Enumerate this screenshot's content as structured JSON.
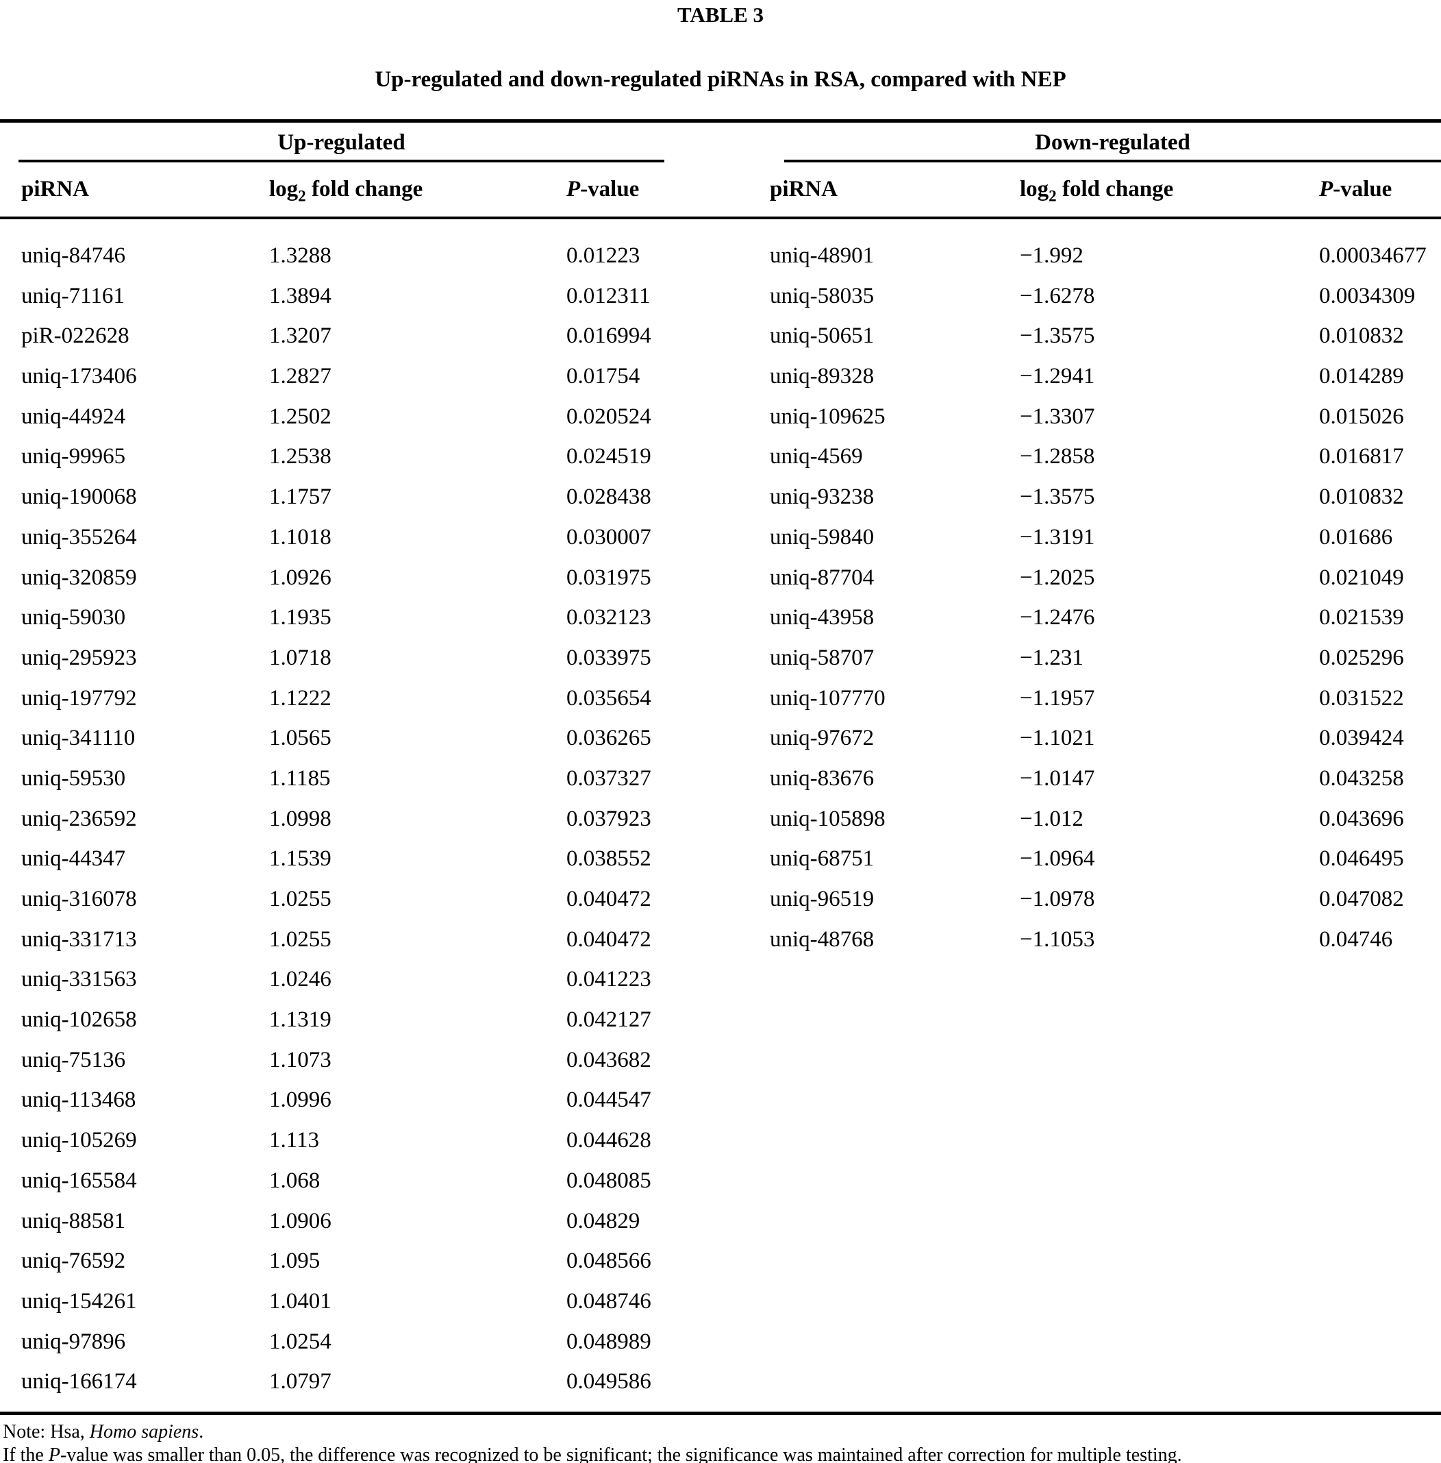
{
  "table": {
    "title": "TABLE 3",
    "subtitle": "Up-regulated and down-regulated piRNAs in RSA, compared with NEP",
    "column_headers": {
      "pirna": "piRNA",
      "log2_pre": "log",
      "log2_sub": "2",
      "log2_post": " fold change",
      "pvalue_italic": "P",
      "pvalue_rest": "-value"
    },
    "panels": [
      {
        "group_label": "Up-regulated",
        "rows": [
          [
            "uniq-84746",
            "1.3288",
            "0.01223"
          ],
          [
            "uniq-71161",
            "1.3894",
            "0.012311"
          ],
          [
            "piR-022628",
            "1.3207",
            "0.016994"
          ],
          [
            "uniq-173406",
            "1.2827",
            "0.01754"
          ],
          [
            "uniq-44924",
            "1.2502",
            "0.020524"
          ],
          [
            "uniq-99965",
            "1.2538",
            "0.024519"
          ],
          [
            "uniq-190068",
            "1.1757",
            "0.028438"
          ],
          [
            "uniq-355264",
            "1.1018",
            "0.030007"
          ],
          [
            "uniq-320859",
            "1.0926",
            "0.031975"
          ],
          [
            "uniq-59030",
            "1.1935",
            "0.032123"
          ],
          [
            "uniq-295923",
            "1.0718",
            "0.033975"
          ],
          [
            "uniq-197792",
            "1.1222",
            "0.035654"
          ],
          [
            "uniq-341110",
            "1.0565",
            "0.036265"
          ],
          [
            "uniq-59530",
            "1.1185",
            "0.037327"
          ],
          [
            "uniq-236592",
            "1.0998",
            "0.037923"
          ],
          [
            "uniq-44347",
            "1.1539",
            "0.038552"
          ],
          [
            "uniq-316078",
            "1.0255",
            "0.040472"
          ],
          [
            "uniq-331713",
            "1.0255",
            "0.040472"
          ],
          [
            "uniq-331563",
            "1.0246",
            "0.041223"
          ],
          [
            "uniq-102658",
            "1.1319",
            "0.042127"
          ],
          [
            "uniq-75136",
            "1.1073",
            "0.043682"
          ],
          [
            "uniq-113468",
            "1.0996",
            "0.044547"
          ],
          [
            "uniq-105269",
            "1.113",
            "0.044628"
          ],
          [
            "uniq-165584",
            "1.068",
            "0.048085"
          ],
          [
            "uniq-88581",
            "1.0906",
            "0.04829"
          ],
          [
            "uniq-76592",
            "1.095",
            "0.048566"
          ],
          [
            "uniq-154261",
            "1.0401",
            "0.048746"
          ],
          [
            "uniq-97896",
            "1.0254",
            "0.048989"
          ],
          [
            "uniq-166174",
            "1.0797",
            "0.049586"
          ]
        ]
      },
      {
        "group_label": "Down-regulated",
        "rows": [
          [
            "uniq-48901",
            "−1.992",
            "0.00034677"
          ],
          [
            "uniq-58035",
            "−1.6278",
            "0.0034309"
          ],
          [
            "uniq-50651",
            "−1.3575",
            "0.010832"
          ],
          [
            "uniq-89328",
            "−1.2941",
            "0.014289"
          ],
          [
            "uniq-109625",
            "−1.3307",
            "0.015026"
          ],
          [
            "uniq-4569",
            "−1.2858",
            "0.016817"
          ],
          [
            "uniq-93238",
            "−1.3575",
            "0.010832"
          ],
          [
            "uniq-59840",
            "−1.3191",
            "0.01686"
          ],
          [
            "uniq-87704",
            "−1.2025",
            "0.021049"
          ],
          [
            "uniq-43958",
            "−1.2476",
            "0.021539"
          ],
          [
            "uniq-58707",
            "−1.231",
            "0.025296"
          ],
          [
            "uniq-107770",
            "−1.1957",
            "0.031522"
          ],
          [
            "uniq-97672",
            "−1.1021",
            "0.039424"
          ],
          [
            "uniq-83676",
            "−1.0147",
            "0.043258"
          ],
          [
            "uniq-105898",
            "−1.012",
            "0.043696"
          ],
          [
            "uniq-68751",
            "−1.0964",
            "0.046495"
          ],
          [
            "uniq-96519",
            "−1.0978",
            "0.047082"
          ],
          [
            "uniq-48768",
            "−1.1053",
            "0.04746"
          ]
        ]
      }
    ],
    "notes": {
      "line1_prefix": "Note: Hsa, ",
      "line1_italic": "Homo sapiens",
      "line1_suffix": ".",
      "line2_prefix": "If the ",
      "line2_italic": "P",
      "line2_suffix": "-value was smaller than 0.05, the difference was recognized to be significant; the significance was maintained after correction for multiple testing."
    }
  }
}
